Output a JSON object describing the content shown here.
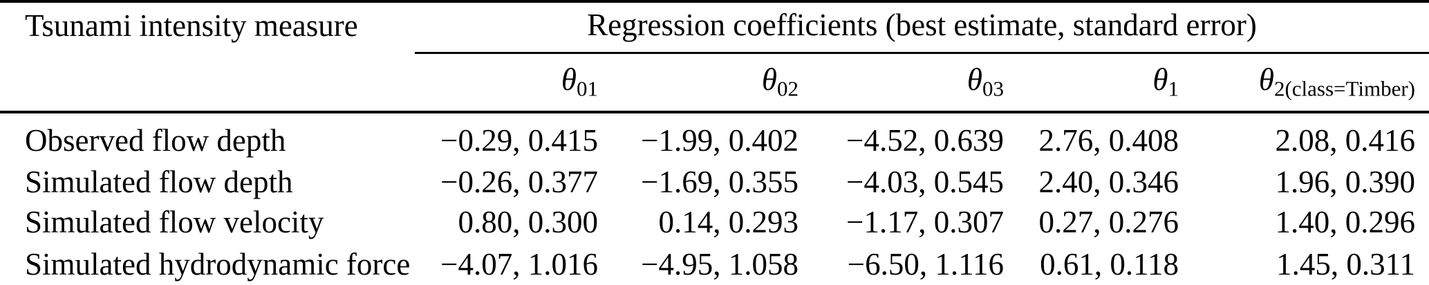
{
  "table": {
    "stub_header": "Tsunami intensity measure",
    "span_header": "Regression coefficients (best estimate, standard error)",
    "columns": [
      {
        "base": "θ",
        "sub": "01"
      },
      {
        "base": "θ",
        "sub": "02"
      },
      {
        "base": "θ",
        "sub": "03"
      },
      {
        "base": "θ",
        "sub": "1"
      },
      {
        "base": "θ",
        "sub": "2(class=Timber)"
      }
    ],
    "rows": [
      {
        "label": "Observed flow depth",
        "values": [
          "−0.29, 0.415",
          "−1.99, 0.402",
          "−4.52, 0.639",
          "2.76, 0.408",
          "2.08, 0.416"
        ]
      },
      {
        "label": "Simulated flow depth",
        "values": [
          "−0.26, 0.377",
          "−1.69, 0.355",
          "−4.03, 0.545",
          "2.40, 0.346",
          "1.96, 0.390"
        ]
      },
      {
        "label": "Simulated flow velocity",
        "values": [
          "0.80, 0.300",
          "0.14, 0.293",
          "−1.17, 0.307",
          "0.27, 0.276",
          "1.40, 0.296"
        ]
      },
      {
        "label": "Simulated hydrodynamic force",
        "values": [
          "−4.07, 1.016",
          "−4.95, 1.058",
          "−6.50, 1.116",
          "0.61, 0.118",
          "1.45, 0.311"
        ]
      }
    ],
    "colors": {
      "text": "#000000",
      "background": "#ffffff",
      "rule": "#000000"
    }
  }
}
